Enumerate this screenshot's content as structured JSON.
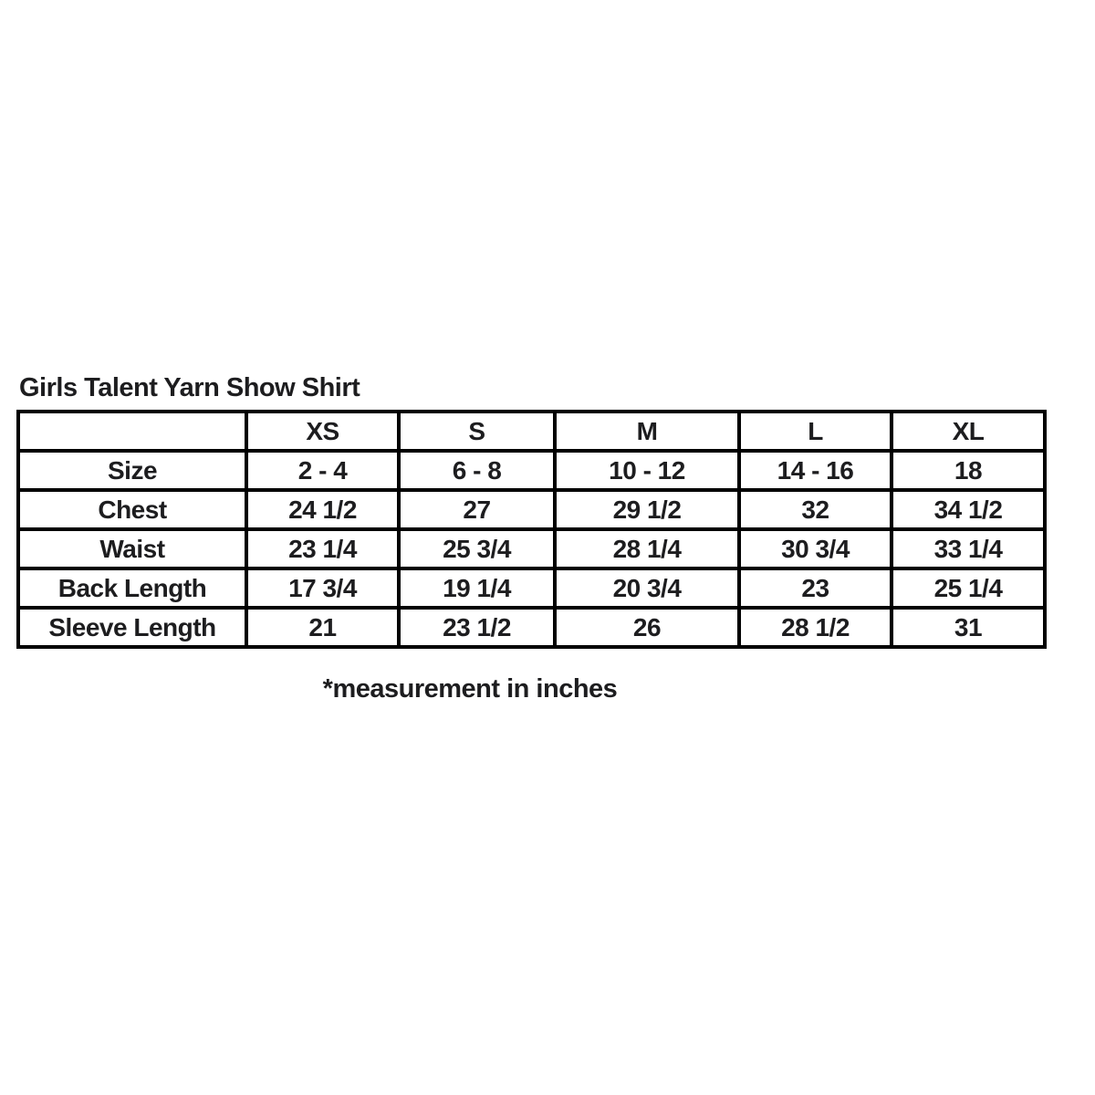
{
  "title": "Girls Talent Yarn Show Shirt",
  "footnote": "*measurement in inches",
  "table": {
    "corner_label": "",
    "columns": [
      "XS",
      "S",
      "M",
      "L",
      "XL"
    ],
    "rows": [
      {
        "label": "Size",
        "values": [
          "2 - 4",
          "6 - 8",
          "10 - 12",
          "14 - 16",
          "18"
        ]
      },
      {
        "label": "Chest",
        "values": [
          "24 1/2",
          "27",
          "29 1/2",
          "32",
          "34 1/2"
        ]
      },
      {
        "label": "Waist",
        "values": [
          "23 1/4",
          "25 3/4",
          "28 1/4",
          "30 3/4",
          "33 1/4"
        ]
      },
      {
        "label": "Back Length",
        "values": [
          "17 3/4",
          "19 1/4",
          "20 3/4",
          "23",
          "25 1/4"
        ]
      },
      {
        "label": "Sleeve Length",
        "values": [
          "21",
          "23 1/2",
          "26",
          "28 1/2",
          "31"
        ]
      }
    ]
  },
  "colors": {
    "text": "#1d1d1f",
    "border": "#000000",
    "background": "#ffffff"
  }
}
